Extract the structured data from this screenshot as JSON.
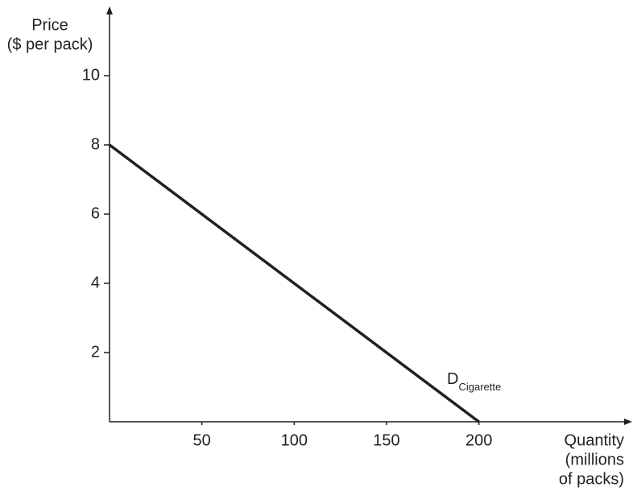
{
  "chart_data": {
    "type": "line",
    "y_label_lines": [
      "Price",
      "($ per pack)"
    ],
    "x_label_lines": [
      "Quantity",
      "(millions",
      "of packs)"
    ],
    "x": [
      0,
      200
    ],
    "series": [
      {
        "name": "D",
        "name_subscript": "Cigarette",
        "color": "#231f20",
        "values": [
          8,
          0
        ]
      }
    ],
    "xlim": [
      0,
      283
    ],
    "ylim": [
      0,
      12
    ],
    "xticks": [
      50,
      100,
      150,
      200
    ],
    "yticks": [
      2,
      4,
      6,
      8,
      10
    ],
    "grid": false
  }
}
